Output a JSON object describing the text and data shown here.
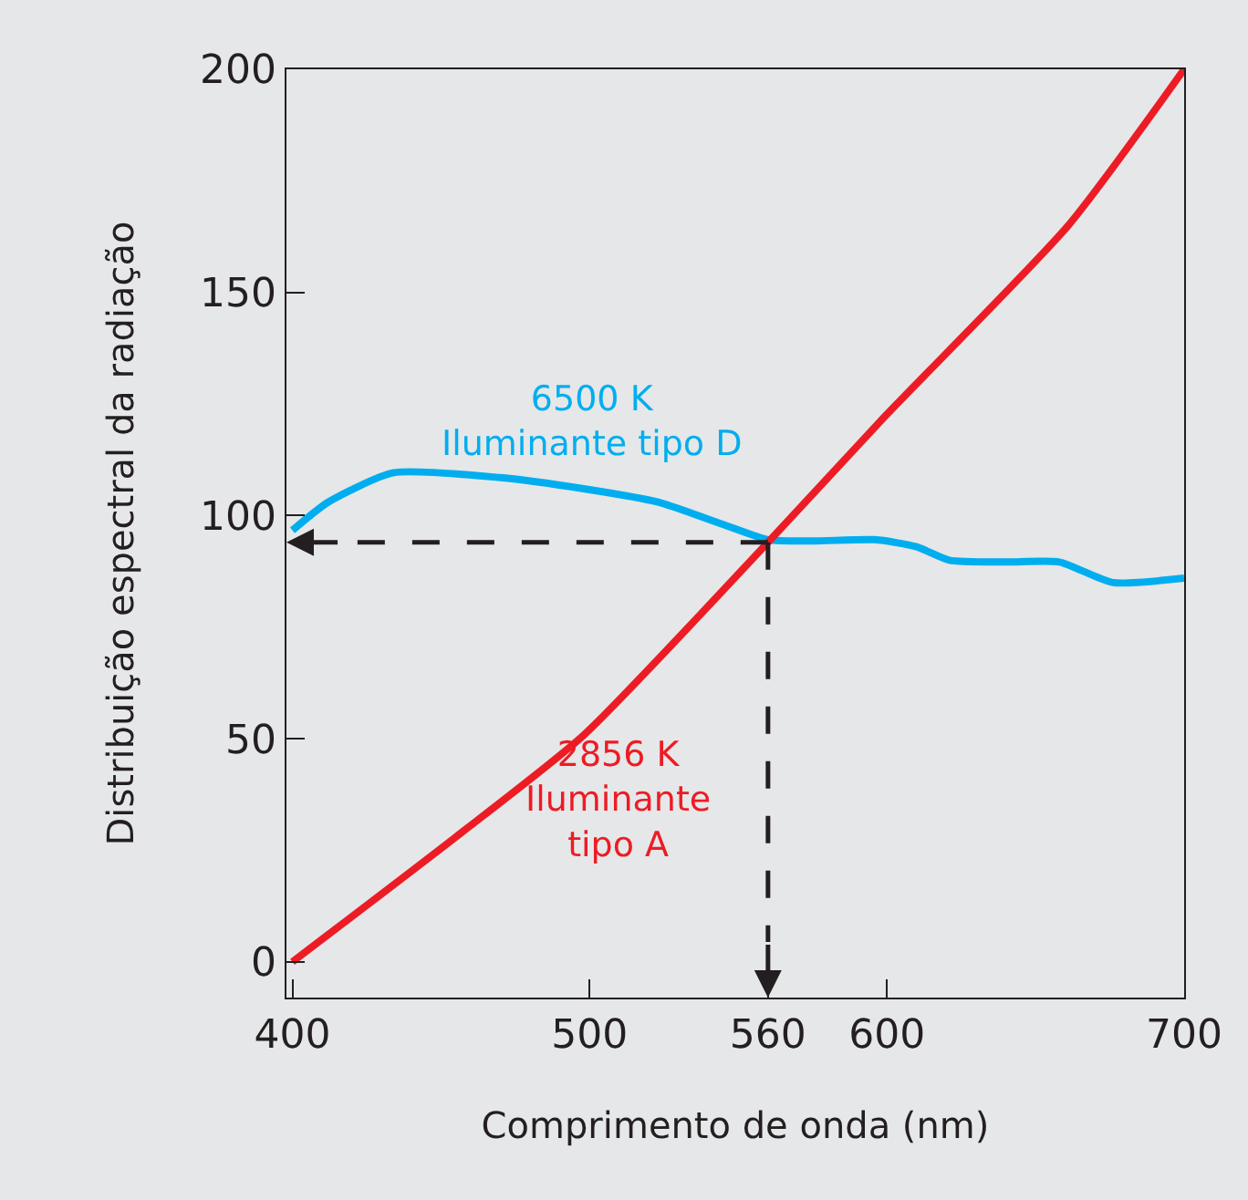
{
  "chart_data": {
    "type": "line",
    "xlabel": "Comprimento de onda (nm)",
    "ylabel": "Distribuição espectral da radiação",
    "xlim": [
      398,
      700
    ],
    "ylim": [
      -8,
      200
    ],
    "xticks": [
      400,
      500,
      560,
      600,
      700
    ],
    "yticks": [
      0,
      50,
      100,
      150,
      200
    ],
    "grid": false,
    "legend": false,
    "marker": "none",
    "line_style": "solid",
    "series": [
      {
        "name": "6500 K\nIluminante tipo D",
        "color": "#00aeef",
        "x": [
          400,
          412,
          434,
          470,
          498,
          523,
          545,
          560,
          575,
          596,
          610,
          621,
          640,
          658,
          676,
          700
        ],
        "values": [
          96.7,
          103,
          109.6,
          108.5,
          106,
          103,
          98,
          94.6,
          94.3,
          94.6,
          93,
          90,
          89.6,
          89.6,
          85,
          86
        ]
      },
      {
        "name": "2856 K\nIluminante\ntipo A",
        "color": "#ed1c24",
        "x": [
          400,
          455,
          498,
          560,
          599,
          661,
          700
        ],
        "values": [
          0,
          28,
          50.8,
          94,
          122,
          165,
          200
        ]
      }
    ],
    "ref_lines": [
      {
        "axis": "x",
        "value": 560,
        "label": null,
        "color": "#231f20",
        "line_style": "dashed"
      },
      {
        "axis": "y",
        "value": 94,
        "label": null,
        "color": "#231f20",
        "line_style": "dashed"
      }
    ]
  }
}
